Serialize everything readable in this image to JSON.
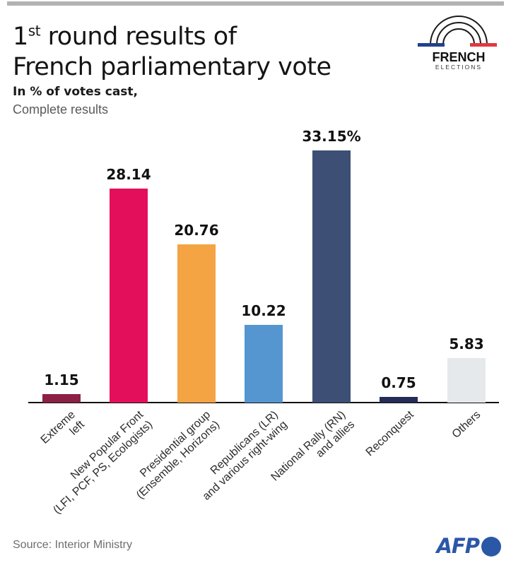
{
  "header": {
    "title_num": "1",
    "title_sup": "st",
    "title_rest": " round results of",
    "title_line2": "French parliamentary vote",
    "subtitle_bold": "In % of votes cast,",
    "subtitle_light": "Complete results"
  },
  "brand": {
    "line1": "FRENCH",
    "line2": "ELECTIONS",
    "flag_blue": "#23408f",
    "flag_red": "#e4363f",
    "arc_color": "#1a1a1a"
  },
  "chart_data": {
    "type": "bar",
    "title": "1st round results of French parliamentary vote",
    "subtitle": "In % of votes cast, Complete results",
    "xlabel": "",
    "ylabel": "% of votes cast",
    "ylim": [
      0,
      35
    ],
    "grid": false,
    "legend": "none",
    "categories": [
      "Extreme left",
      "New Popular Front (LFI, PCF, PS, Ecologists)",
      "Presidential group (Ensemble, Horizons)",
      "Republicans (LR) and various right-wing",
      "National Rally (RN) and allies",
      "Reconquest",
      "Others"
    ],
    "label_lines": [
      [
        "Extreme",
        "left"
      ],
      [
        "New Popular Front",
        "(LFI, PCF, PS, Ecologists)"
      ],
      [
        "Presidential group",
        "(Ensemble, Horizons)"
      ],
      [
        "Republicans (LR)",
        "and various right-wing"
      ],
      [
        "National Rally (RN)",
        "and allies"
      ],
      [
        "Reconquest"
      ],
      [
        "Others"
      ]
    ],
    "values": [
      1.15,
      28.14,
      20.76,
      10.22,
      33.15,
      0.75,
      5.83
    ],
    "value_labels": [
      "1.15",
      "28.14",
      "20.76",
      "10.22",
      "33.15%",
      "0.75",
      "5.83"
    ],
    "colors": [
      "#8C2145",
      "#E40F5A",
      "#F4A443",
      "#5596D1",
      "#3D4F74",
      "#252C55",
      "#E5E9EC"
    ]
  },
  "footer": {
    "source": "Source: Interior Ministry",
    "afp_label": "AFP",
    "afp_color": "#2b57a7"
  }
}
